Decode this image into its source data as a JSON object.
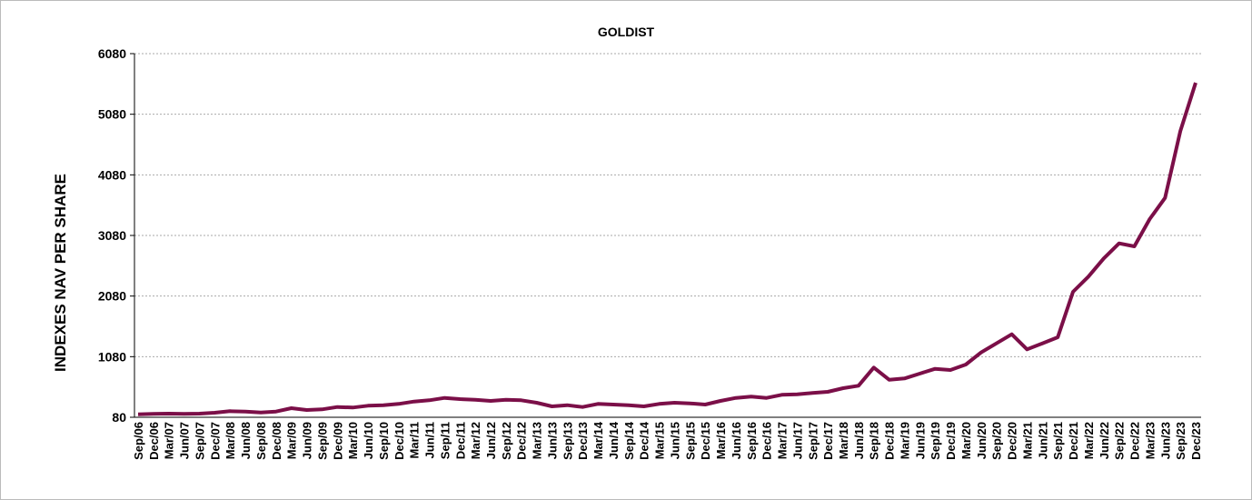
{
  "chart_data": {
    "type": "line",
    "title": "GOLDIST",
    "y_label": "INDEXES NAV PER SHARE",
    "categories": [
      "Sep/06",
      "Dec/06",
      "Mar/07",
      "Jun/07",
      "Sep/07",
      "Dec/07",
      "Mar/08",
      "Jun/08",
      "Sep/08",
      "Dec/08",
      "Mar/09",
      "Jun/09",
      "Sep/09",
      "Dec/09",
      "Mar/10",
      "Jun/10",
      "Sep/10",
      "Dec/10",
      "Mar/11",
      "Jun/11",
      "Sep/11",
      "Dec/11",
      "Mar/12",
      "Jun/12",
      "Sep/12",
      "Dec/12",
      "Mar/13",
      "Jun/13",
      "Sep/13",
      "Dec/13",
      "Mar/14",
      "Jun/14",
      "Sep/14",
      "Dec/14",
      "Mar/15",
      "Jun/15",
      "Sep/15",
      "Dec/15",
      "Mar/16",
      "Jun/16",
      "Sep/16",
      "Dec/16",
      "Mar/17",
      "Jun/17",
      "Sep/17",
      "Dec/17",
      "Mar/18",
      "Jun/18",
      "Sep/18",
      "Dec/18",
      "Mar/19",
      "Jun/19",
      "Sep/19",
      "Dec/19",
      "Mar/20",
      "Jun/20",
      "Sep/20",
      "Dec/20",
      "Mar/21",
      "Jun/21",
      "Sep/21",
      "Dec/21",
      "Mar/22",
      "Jun/22",
      "Sep/22",
      "Dec/22",
      "Mar/23",
      "Jun/23",
      "Sep/23",
      "Dec/23"
    ],
    "series": [
      {
        "name": "GOLDIST",
        "color": "#7b0f48",
        "values": [
          130,
          135,
          140,
          135,
          140,
          155,
          180,
          175,
          160,
          175,
          230,
          200,
          210,
          250,
          240,
          270,
          280,
          300,
          340,
          360,
          400,
          380,
          370,
          350,
          370,
          360,
          320,
          260,
          280,
          250,
          300,
          290,
          280,
          260,
          300,
          320,
          310,
          290,
          350,
          400,
          420,
          400,
          450,
          460,
          480,
          500,
          560,
          600,
          900,
          700,
          720,
          800,
          880,
          860,
          950,
          1150,
          1300,
          1450,
          1200,
          1300,
          1400,
          2150,
          2400,
          2700,
          2950,
          2900,
          3350,
          3700,
          4800,
          5600
        ]
      }
    ],
    "ylim": [
      80,
      6080
    ],
    "yticks": [
      80,
      1080,
      2080,
      3080,
      4080,
      5080,
      6080
    ],
    "grid": true
  }
}
